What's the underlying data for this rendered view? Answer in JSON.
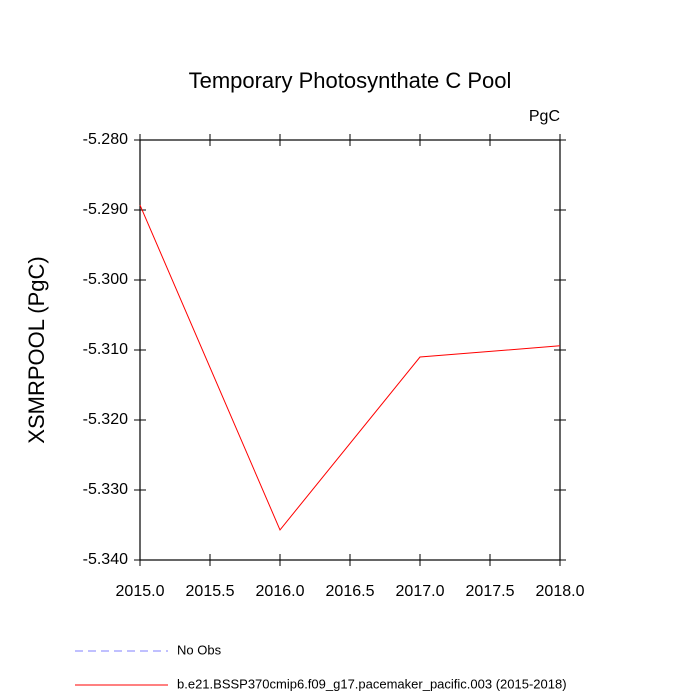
{
  "chart_data": {
    "type": "line",
    "title": "Temporary Photosynthate C Pool",
    "subtitle": "PgC",
    "y_label": "XSMRPOOL  (PgC)",
    "x": [
      2015,
      2016,
      2017,
      2018
    ],
    "series": [
      {
        "name": "No Obs",
        "color": "#8080ff",
        "dash": true,
        "values": [
          null,
          null,
          null,
          null
        ]
      },
      {
        "name": "b.e21.BSSP370cmip6.f09_g17.pacemaker_pacific.003 (2015-2018)",
        "color": "#ff0000",
        "dash": false,
        "values": [
          -5.2893,
          -5.3357,
          -5.311,
          -5.3094
        ]
      }
    ],
    "xlim": [
      2015,
      2018
    ],
    "xticks": [
      {
        "value": 2015,
        "label": "2015.0"
      },
      {
        "value": 2015.5,
        "label": "2015.5"
      },
      {
        "value": 2016,
        "label": "2016.0"
      },
      {
        "value": 2016.5,
        "label": "2016.5"
      },
      {
        "value": 2017,
        "label": "2017.0"
      },
      {
        "value": 2017.5,
        "label": "2017.5"
      },
      {
        "value": 2018,
        "label": "2018.0"
      }
    ],
    "ylim": [
      -5.34,
      -5.28
    ],
    "yticks": [
      {
        "value": -5.34,
        "label": "-5.340"
      },
      {
        "value": -5.33,
        "label": "-5.330"
      },
      {
        "value": -5.32,
        "label": "-5.320"
      },
      {
        "value": -5.31,
        "label": "-5.310"
      },
      {
        "value": -5.3,
        "label": "-5.300"
      },
      {
        "value": -5.29,
        "label": "-5.290"
      },
      {
        "value": -5.28,
        "label": "-5.280"
      }
    ],
    "grid": false
  }
}
